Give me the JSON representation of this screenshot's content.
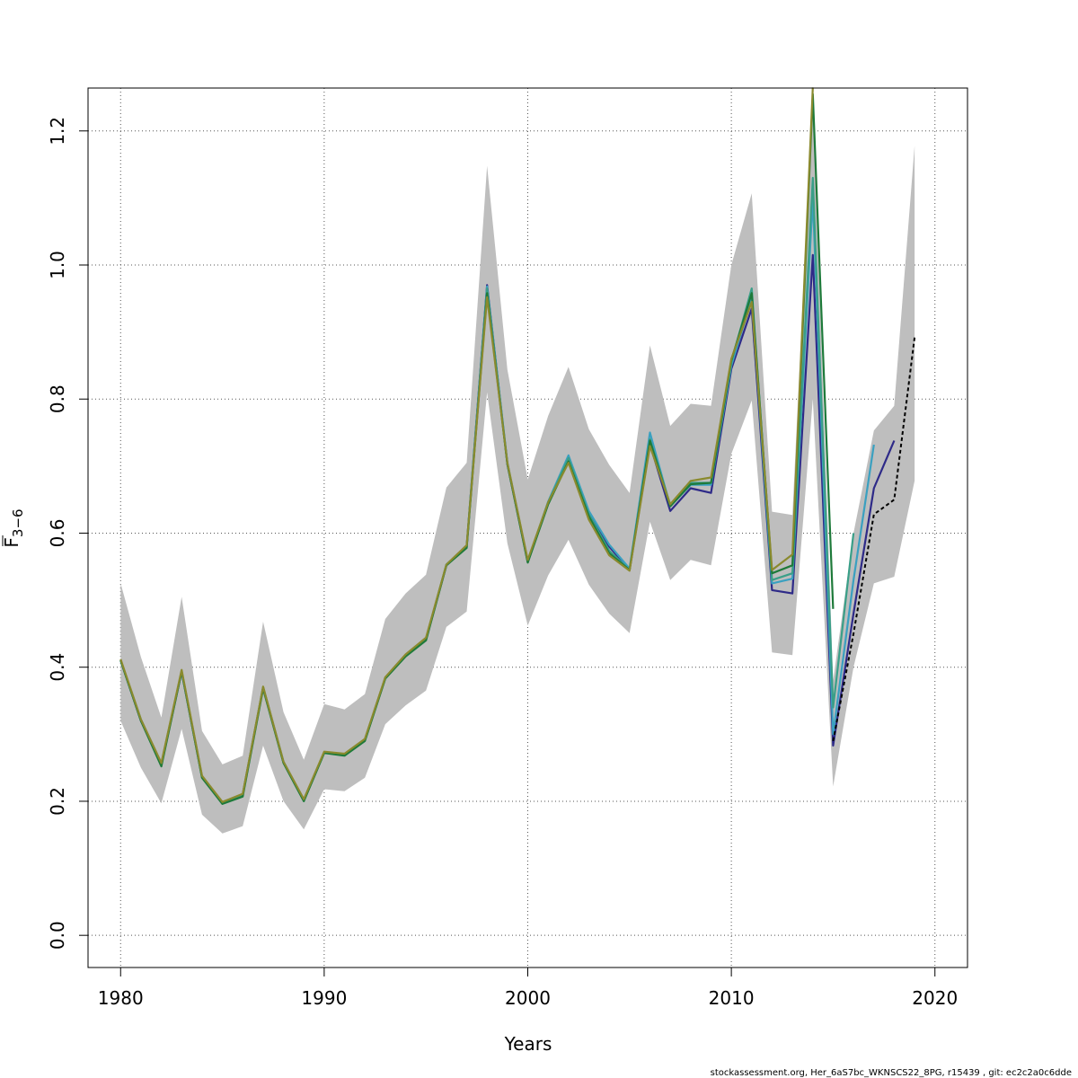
{
  "chart_data": {
    "type": "line",
    "xlabel": "Years",
    "ylabel_main": "F",
    "ylabel_sub": "3−6",
    "xlim": [
      1978.4,
      2021.6
    ],
    "ylim": [
      -0.048,
      1.264
    ],
    "x_ticks": [
      1980,
      1990,
      2000,
      2010,
      2020
    ],
    "x_tick_labels": [
      "1980",
      "1990",
      "2000",
      "2010",
      "2020"
    ],
    "y_ticks": [
      0.0,
      0.2,
      0.4,
      0.6,
      0.8,
      1.0,
      1.2
    ],
    "y_tick_labels": [
      "0.0",
      "0.2",
      "0.4",
      "0.6",
      "0.8",
      "1.0",
      "1.2"
    ],
    "grid": true,
    "band_color": "#bebebe",
    "band": {
      "x": [
        1980,
        1981,
        1982,
        1983,
        1984,
        1985,
        1986,
        1987,
        1988,
        1989,
        1990,
        1991,
        1992,
        1993,
        1994,
        1995,
        1996,
        1997,
        1998,
        1999,
        2000,
        2001,
        2002,
        2003,
        2004,
        2005,
        2006,
        2007,
        2008,
        2009,
        2010,
        2011,
        2012,
        2013,
        2014,
        2015,
        2016,
        2017,
        2018,
        2019
      ],
      "upper": [
        0.525,
        0.415,
        0.325,
        0.505,
        0.305,
        0.255,
        0.268,
        0.468,
        0.333,
        0.262,
        0.345,
        0.337,
        0.36,
        0.472,
        0.51,
        0.538,
        0.668,
        0.705,
        1.148,
        0.844,
        0.68,
        0.775,
        0.848,
        0.755,
        0.702,
        0.66,
        0.88,
        0.76,
        0.793,
        0.79,
        1.0,
        1.107,
        0.632,
        0.627,
        1.26,
        0.38,
        0.6,
        0.753,
        0.79,
        1.178
      ],
      "lower": [
        0.32,
        0.25,
        0.197,
        0.308,
        0.18,
        0.152,
        0.163,
        0.283,
        0.2,
        0.158,
        0.218,
        0.215,
        0.235,
        0.315,
        0.343,
        0.365,
        0.46,
        0.483,
        0.81,
        0.585,
        0.462,
        0.537,
        0.59,
        0.523,
        0.48,
        0.451,
        0.617,
        0.53,
        0.56,
        0.552,
        0.718,
        0.798,
        0.422,
        0.418,
        0.8,
        0.222,
        0.4,
        0.525,
        0.535,
        0.678
      ]
    },
    "series": [
      {
        "color": "#2e2a88",
        "x": [
          1980,
          1981,
          1982,
          1983,
          1984,
          1985,
          1986,
          1987,
          1988,
          1989,
          1990,
          1991,
          1992,
          1993,
          1994,
          1995,
          1996,
          1997,
          1998,
          1999,
          2000,
          2001,
          2002,
          2003,
          2004,
          2005,
          2006,
          2007,
          2008,
          2009,
          2010,
          2011,
          2012,
          2013,
          2014,
          2015,
          2016,
          2017,
          2018
        ],
        "y": [
          0.41,
          0.32,
          0.255,
          0.393,
          0.236,
          0.198,
          0.21,
          0.37,
          0.258,
          0.202,
          0.273,
          0.27,
          0.292,
          0.384,
          0.417,
          0.442,
          0.552,
          0.58,
          0.97,
          0.703,
          0.557,
          0.645,
          0.71,
          0.63,
          0.58,
          0.545,
          0.733,
          0.633,
          0.667,
          0.66,
          0.845,
          0.935,
          0.515,
          0.51,
          1.015,
          0.283,
          0.48,
          0.667,
          0.738
        ]
      },
      {
        "color": "#3aa0c0",
        "x": [
          1980,
          1981,
          1982,
          1983,
          1984,
          1985,
          1986,
          1987,
          1988,
          1989,
          1990,
          1991,
          1992,
          1993,
          1994,
          1995,
          1996,
          1997,
          1998,
          1999,
          2000,
          2001,
          2002,
          2003,
          2004,
          2005,
          2006,
          2007,
          2008,
          2009,
          2010,
          2011,
          2012,
          2013,
          2014,
          2015,
          2016,
          2017
        ],
        "y": [
          0.41,
          0.322,
          0.256,
          0.394,
          0.237,
          0.198,
          0.21,
          0.37,
          0.259,
          0.202,
          0.273,
          0.27,
          0.292,
          0.384,
          0.418,
          0.442,
          0.553,
          0.58,
          0.968,
          0.705,
          0.558,
          0.647,
          0.716,
          0.633,
          0.583,
          0.547,
          0.75,
          0.64,
          0.672,
          0.672,
          0.85,
          0.95,
          0.525,
          0.532,
          1.1,
          0.3,
          0.53,
          0.732
        ]
      },
      {
        "color": "#3a9f88",
        "x": [
          1980,
          1981,
          1982,
          1983,
          1984,
          1985,
          1986,
          1987,
          1988,
          1989,
          1990,
          1991,
          1992,
          1993,
          1994,
          1995,
          1996,
          1997,
          1998,
          1999,
          2000,
          2001,
          2002,
          2003,
          2004,
          2005,
          2006,
          2007,
          2008,
          2009,
          2010,
          2011,
          2012,
          2013,
          2014,
          2015,
          2016
        ],
        "y": [
          0.41,
          0.321,
          0.256,
          0.394,
          0.236,
          0.198,
          0.21,
          0.37,
          0.258,
          0.202,
          0.273,
          0.27,
          0.292,
          0.384,
          0.418,
          0.442,
          0.553,
          0.58,
          0.965,
          0.704,
          0.558,
          0.646,
          0.712,
          0.628,
          0.574,
          0.545,
          0.74,
          0.642,
          0.675,
          0.675,
          0.855,
          0.965,
          0.53,
          0.54,
          1.13,
          0.34,
          0.6
        ]
      },
      {
        "color": "#1e7a3a",
        "x": [
          1980,
          1981,
          1982,
          1983,
          1984,
          1985,
          1986,
          1987,
          1988,
          1989,
          1990,
          1991,
          1992,
          1993,
          1994,
          1995,
          1996,
          1997,
          1998,
          1999,
          2000,
          2001,
          2002,
          2003,
          2004,
          2005,
          2006,
          2007,
          2008,
          2009,
          2010,
          2011,
          2012,
          2013,
          2014,
          2015
        ],
        "y": [
          0.41,
          0.32,
          0.252,
          0.394,
          0.235,
          0.196,
          0.207,
          0.368,
          0.257,
          0.2,
          0.272,
          0.268,
          0.29,
          0.383,
          0.416,
          0.44,
          0.552,
          0.578,
          0.958,
          0.703,
          0.556,
          0.643,
          0.707,
          0.625,
          0.57,
          0.545,
          0.738,
          0.64,
          0.673,
          0.675,
          0.858,
          0.958,
          0.54,
          0.552,
          1.255,
          0.487
        ]
      },
      {
        "color": "#8a8a2e",
        "x": [
          1980,
          1981,
          1982,
          1983,
          1984,
          1985,
          1986,
          1987,
          1988,
          1989,
          1990,
          1991,
          1992,
          1993,
          1994,
          1995,
          1996,
          1997,
          1998,
          1999,
          2000,
          2001,
          2002,
          2003,
          2004,
          2005,
          2006,
          2007,
          2008,
          2009,
          2010,
          2011,
          2012,
          2013,
          2014
        ],
        "y": [
          0.412,
          0.322,
          0.257,
          0.396,
          0.238,
          0.199,
          0.211,
          0.371,
          0.259,
          0.203,
          0.274,
          0.271,
          0.293,
          0.385,
          0.419,
          0.444,
          0.553,
          0.582,
          0.952,
          0.705,
          0.56,
          0.646,
          0.705,
          0.62,
          0.567,
          0.544,
          0.73,
          0.643,
          0.678,
          0.683,
          0.86,
          0.945,
          0.545,
          0.568,
          1.265
        ]
      },
      {
        "color": "#000000",
        "dashed": true,
        "x": [
          2015,
          2016,
          2017,
          2018,
          2019
        ],
        "y": [
          0.29,
          0.45,
          0.628,
          0.65,
          0.892
        ]
      }
    ],
    "footer": "stockassessment.org, Her_6aS7bc_WKNSCS22_8PG, r15439 , git: ec2c2a0c6dde"
  }
}
